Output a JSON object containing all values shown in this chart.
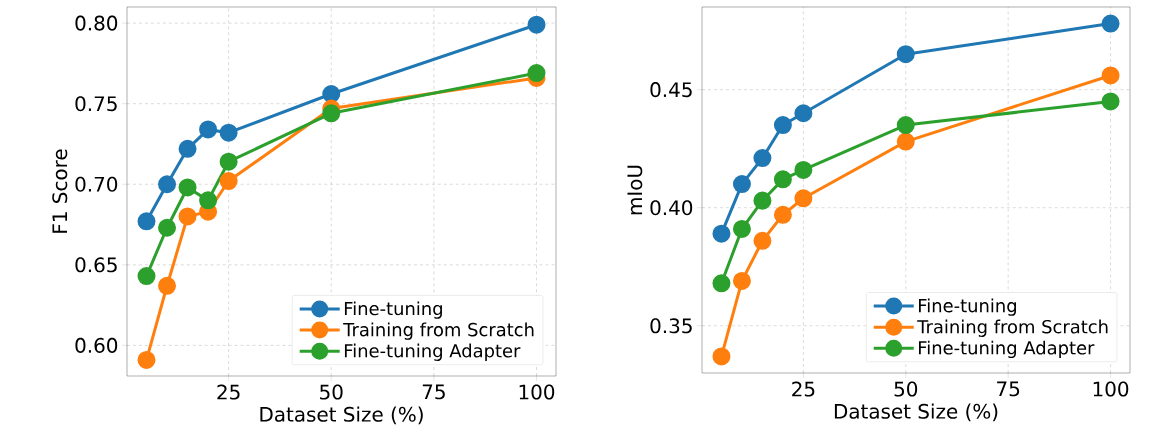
{
  "chart_data": [
    {
      "type": "line",
      "xlabel": "Dataset Size (%)",
      "ylabel": "F1 Score",
      "x": [
        5,
        10,
        15,
        20,
        25,
        50,
        100
      ],
      "xlim": [
        0.25,
        104.75
      ],
      "ylim": [
        0.581,
        0.81
      ],
      "xticks": [
        25,
        50,
        75,
        100
      ],
      "yticks": [
        {
          "value": 0.6,
          "label": "0.60"
        },
        {
          "value": 0.65,
          "label": "0.65"
        },
        {
          "value": 0.7,
          "label": "0.70"
        },
        {
          "value": 0.75,
          "label": "0.75"
        },
        {
          "value": 0.8,
          "label": "0.80"
        }
      ],
      "grid": true,
      "legend": "bottom right",
      "marker": "circle",
      "line_style": "solid",
      "series": [
        {
          "name": "Fine-tuning",
          "color": "#1f77b4",
          "values": [
            0.677,
            0.7,
            0.722,
            0.734,
            0.732,
            0.756,
            0.799
          ]
        },
        {
          "name": "Training from Scratch",
          "color": "#ff7f0e",
          "values": [
            0.591,
            0.637,
            0.68,
            0.683,
            0.702,
            0.747,
            0.766
          ]
        },
        {
          "name": "Fine-tuning Adapter",
          "color": "#2ca02c",
          "values": [
            0.643,
            0.673,
            0.698,
            0.69,
            0.714,
            0.744,
            0.769
          ]
        }
      ]
    },
    {
      "type": "line",
      "xlabel": "Dataset Size (%)",
      "ylabel": "mIoU",
      "x": [
        5,
        10,
        15,
        20,
        25,
        50,
        100
      ],
      "xlim": [
        0.25,
        104.75
      ],
      "ylim": [
        0.33,
        0.485
      ],
      "xticks": [
        25,
        50,
        75,
        100
      ],
      "yticks": [
        0.35,
        {
          "value": 0.4,
          "label": "0.40"
        },
        0.45
      ],
      "grid": true,
      "legend": "bottom right",
      "marker": "circle",
      "line_style": "solid",
      "series": [
        {
          "name": "Fine-tuning",
          "color": "#1f77b4",
          "values": [
            0.389,
            0.41,
            0.421,
            0.435,
            0.44,
            0.465,
            0.478
          ]
        },
        {
          "name": "Training from Scratch",
          "color": "#ff7f0e",
          "values": [
            0.337,
            0.369,
            0.386,
            0.397,
            0.404,
            0.428,
            0.456
          ]
        },
        {
          "name": "Fine-tuning Adapter",
          "color": "#2ca02c",
          "values": [
            0.368,
            0.391,
            0.403,
            0.412,
            0.416,
            0.435,
            0.445
          ]
        }
      ]
    }
  ]
}
